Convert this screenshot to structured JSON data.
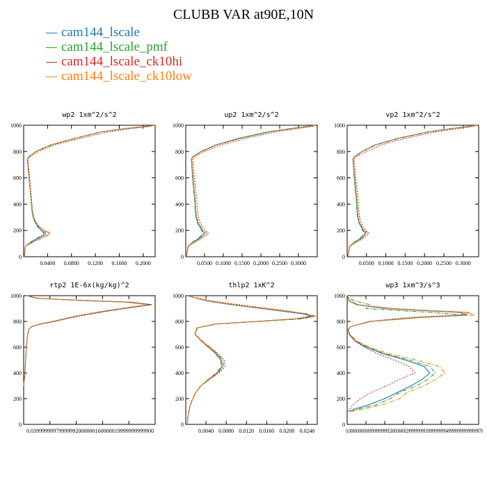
{
  "title": "CLUBB VAR at90E,10N",
  "legend": [
    {
      "label": "cam144_lscale",
      "color": "#1f77b4",
      "dash": "solid"
    },
    {
      "label": "cam144_lscale_pmf",
      "color": "#2ca02c",
      "dash": "dashdot"
    },
    {
      "label": "cam144_lscale_ck10hi",
      "color": "#d62728",
      "dash": "dotted"
    },
    {
      "label": "cam144_lscale_ck10low",
      "color": "#ff7f0e",
      "dash": "dashdot"
    }
  ],
  "chart_data": [
    {
      "type": "line",
      "title": "wp2   1xm^2/s^2",
      "xlim": [
        0,
        0.22
      ],
      "ylim": [
        1000,
        0
      ],
      "yticks": [
        "0",
        "200",
        "400",
        "600",
        "800",
        "1000"
      ],
      "ytick_values": [
        0,
        200,
        400,
        600,
        800,
        1000
      ],
      "xticks": [
        "0.0400",
        "0.0800",
        "0.1200",
        "0.1600",
        "0.2000"
      ],
      "xtick_values": [
        0.04,
        0.08,
        0.12,
        0.16,
        0.2
      ],
      "y": [
        0,
        80,
        110,
        140,
        170,
        180,
        200,
        230,
        260,
        300,
        350,
        400,
        450,
        500,
        600,
        700,
        740,
        760,
        800,
        850,
        900,
        950,
        975,
        990,
        1000
      ],
      "series": [
        {
          "values": [
            0.001,
            0.003,
            0.012,
            0.024,
            0.036,
            0.037,
            0.03,
            0.024,
            0.02,
            0.016,
            0.014,
            0.013,
            0.012,
            0.011,
            0.009,
            0.007,
            0.006,
            0.008,
            0.02,
            0.045,
            0.085,
            0.13,
            0.17,
            0.2,
            0.22
          ]
        },
        {
          "values": [
            0.001,
            0.003,
            0.011,
            0.022,
            0.033,
            0.034,
            0.028,
            0.023,
            0.019,
            0.016,
            0.014,
            0.013,
            0.012,
            0.011,
            0.009,
            0.007,
            0.006,
            0.008,
            0.021,
            0.047,
            0.087,
            0.132,
            0.172,
            0.205,
            0.22
          ]
        },
        {
          "values": [
            0.001,
            0.003,
            0.014,
            0.028,
            0.041,
            0.043,
            0.034,
            0.026,
            0.021,
            0.017,
            0.015,
            0.014,
            0.013,
            0.012,
            0.01,
            0.008,
            0.007,
            0.01,
            0.025,
            0.052,
            0.095,
            0.142,
            0.182,
            0.21,
            0.22
          ]
        },
        {
          "values": [
            0.001,
            0.003,
            0.016,
            0.03,
            0.044,
            0.045,
            0.035,
            0.026,
            0.021,
            0.017,
            0.015,
            0.013,
            0.012,
            0.011,
            0.009,
            0.007,
            0.006,
            0.008,
            0.02,
            0.045,
            0.085,
            0.13,
            0.17,
            0.2,
            0.22
          ]
        }
      ]
    },
    {
      "type": "line",
      "title": "up2   1xm^2/s^2",
      "xlim": [
        0,
        0.35
      ],
      "ylim": [
        1000,
        0
      ],
      "yticks": [
        "0",
        "200",
        "400",
        "600",
        "800",
        "1000"
      ],
      "ytick_values": [
        0,
        200,
        400,
        600,
        800,
        1000
      ],
      "xticks": [
        "0.0500",
        "0.1000",
        "0.1500",
        "0.2000",
        "0.2500",
        "0.3000"
      ],
      "xtick_values": [
        0.05,
        0.1,
        0.15,
        0.2,
        0.25,
        0.3
      ],
      "y": [
        0,
        80,
        110,
        140,
        170,
        180,
        200,
        230,
        260,
        300,
        350,
        400,
        450,
        500,
        600,
        700,
        740,
        760,
        800,
        850,
        900,
        950,
        975,
        990,
        1000
      ],
      "series": [
        {
          "values": [
            0.002,
            0.006,
            0.02,
            0.036,
            0.048,
            0.05,
            0.044,
            0.038,
            0.032,
            0.028,
            0.026,
            0.025,
            0.024,
            0.022,
            0.019,
            0.016,
            0.015,
            0.018,
            0.04,
            0.08,
            0.14,
            0.22,
            0.28,
            0.32,
            0.345
          ]
        },
        {
          "values": [
            0.002,
            0.006,
            0.018,
            0.033,
            0.045,
            0.047,
            0.042,
            0.036,
            0.031,
            0.027,
            0.025,
            0.024,
            0.023,
            0.021,
            0.018,
            0.016,
            0.015,
            0.019,
            0.042,
            0.083,
            0.145,
            0.225,
            0.285,
            0.325,
            0.345
          ]
        },
        {
          "values": [
            0.002,
            0.007,
            0.024,
            0.042,
            0.058,
            0.06,
            0.052,
            0.044,
            0.038,
            0.034,
            0.031,
            0.03,
            0.029,
            0.027,
            0.023,
            0.02,
            0.019,
            0.024,
            0.05,
            0.095,
            0.16,
            0.24,
            0.3,
            0.335,
            0.345
          ]
        },
        {
          "values": [
            0.002,
            0.006,
            0.022,
            0.04,
            0.054,
            0.055,
            0.047,
            0.04,
            0.034,
            0.03,
            0.027,
            0.026,
            0.025,
            0.023,
            0.02,
            0.017,
            0.016,
            0.019,
            0.042,
            0.083,
            0.145,
            0.225,
            0.285,
            0.325,
            0.345
          ]
        }
      ]
    },
    {
      "type": "line",
      "title": "vp2   1xm^2/s^2",
      "xlim": [
        0,
        0.34
      ],
      "ylim": [
        1000,
        0
      ],
      "yticks": [
        "0",
        "200",
        "400",
        "600",
        "800",
        "1000"
      ],
      "ytick_values": [
        0,
        200,
        400,
        600,
        800,
        1000
      ],
      "xticks": [
        "0.0500",
        "0.1000",
        "0.1500",
        "0.2000",
        "0.2500",
        "0.3000"
      ],
      "xtick_values": [
        0.05,
        0.1,
        0.15,
        0.2,
        0.25,
        0.3
      ],
      "y": [
        0,
        80,
        110,
        140,
        170,
        180,
        200,
        230,
        260,
        300,
        350,
        400,
        450,
        500,
        600,
        700,
        740,
        760,
        800,
        850,
        900,
        950,
        975,
        990,
        1000
      ],
      "series": [
        {
          "values": [
            0.002,
            0.006,
            0.02,
            0.036,
            0.046,
            0.048,
            0.042,
            0.036,
            0.031,
            0.028,
            0.026,
            0.025,
            0.024,
            0.022,
            0.019,
            0.016,
            0.015,
            0.018,
            0.038,
            0.072,
            0.13,
            0.21,
            0.27,
            0.31,
            0.335
          ]
        },
        {
          "values": [
            0.002,
            0.006,
            0.018,
            0.033,
            0.043,
            0.045,
            0.04,
            0.035,
            0.03,
            0.027,
            0.025,
            0.024,
            0.023,
            0.021,
            0.018,
            0.016,
            0.015,
            0.019,
            0.04,
            0.075,
            0.135,
            0.215,
            0.275,
            0.315,
            0.335
          ]
        },
        {
          "values": [
            0.002,
            0.007,
            0.024,
            0.042,
            0.054,
            0.056,
            0.048,
            0.041,
            0.036,
            0.032,
            0.03,
            0.029,
            0.028,
            0.026,
            0.022,
            0.019,
            0.018,
            0.023,
            0.05,
            0.088,
            0.15,
            0.23,
            0.29,
            0.325,
            0.335
          ]
        },
        {
          "values": [
            0.002,
            0.006,
            0.022,
            0.04,
            0.05,
            0.052,
            0.045,
            0.038,
            0.033,
            0.029,
            0.027,
            0.026,
            0.025,
            0.023,
            0.02,
            0.017,
            0.016,
            0.019,
            0.039,
            0.073,
            0.132,
            0.212,
            0.272,
            0.312,
            0.335
          ]
        }
      ]
    },
    {
      "type": "line",
      "title": "rtp2   1E-6x(kg/kg)^2",
      "xlim": [
        0,
        0.2
      ],
      "ylim": [
        1000,
        0
      ],
      "yticks": [
        "0",
        "200",
        "400",
        "600",
        "800",
        "1000"
      ],
      "ytick_values": [
        0,
        200,
        400,
        600,
        800,
        1000
      ],
      "xticks": [
        "0.0399999",
        "0.0799999",
        "0.1200000",
        "0.1600000",
        "0.1999999"
      ],
      "xtick_values": [
        0.04,
        0.08,
        0.12,
        0.16,
        0.2
      ],
      "xtick_text": "0.0399999997​9999992000000​1600000​19999999999900",
      "y": [
        300,
        400,
        500,
        600,
        700,
        740,
        760,
        780,
        800,
        840,
        880,
        910,
        930,
        950,
        965,
        980,
        1000
      ],
      "series": [
        {
          "values": [
            0.0,
            0.002,
            0.003,
            0.004,
            0.006,
            0.008,
            0.012,
            0.025,
            0.045,
            0.08,
            0.125,
            0.165,
            0.195,
            0.16,
            0.08,
            0.02,
            0.005
          ]
        },
        {
          "values": [
            0.0,
            0.002,
            0.003,
            0.004,
            0.006,
            0.008,
            0.012,
            0.025,
            0.044,
            0.078,
            0.122,
            0.162,
            0.19,
            0.155,
            0.075,
            0.02,
            0.005
          ]
        },
        {
          "values": [
            0.0,
            0.002,
            0.003,
            0.004,
            0.006,
            0.008,
            0.013,
            0.027,
            0.048,
            0.083,
            0.128,
            0.168,
            0.193,
            0.165,
            0.085,
            0.022,
            0.005
          ]
        },
        {
          "values": [
            0.0,
            0.002,
            0.003,
            0.004,
            0.006,
            0.008,
            0.012,
            0.024,
            0.043,
            0.077,
            0.12,
            0.16,
            0.188,
            0.155,
            0.075,
            0.019,
            0.005
          ]
        }
      ]
    },
    {
      "type": "line",
      "title": "thlp2   1xK^2",
      "xlim": [
        0,
        0.026
      ],
      "ylim": [
        1000,
        0
      ],
      "yticks": [
        "0",
        "200",
        "400",
        "600",
        "800",
        "1000"
      ],
      "ytick_values": [
        0,
        200,
        400,
        600,
        800,
        1000
      ],
      "xticks": [
        "0.0040",
        "0.0080",
        "0.0120",
        "0.0160",
        "0.0200",
        "0.0240"
      ],
      "xtick_values": [
        0.004,
        0.008,
        0.012,
        0.016,
        0.02,
        0.024
      ],
      "y": [
        0,
        50,
        100,
        150,
        200,
        250,
        300,
        350,
        400,
        450,
        500,
        550,
        600,
        650,
        700,
        750,
        780,
        800,
        820,
        840,
        860,
        880,
        900,
        930,
        960,
        990,
        1000
      ],
      "series": [
        {
          "values": [
            0.0003,
            0.0004,
            0.0006,
            0.0009,
            0.0014,
            0.002,
            0.003,
            0.0045,
            0.0062,
            0.0072,
            0.007,
            0.006,
            0.0045,
            0.003,
            0.0018,
            0.0022,
            0.006,
            0.014,
            0.022,
            0.025,
            0.023,
            0.019,
            0.015,
            0.009,
            0.004,
            0.0012,
            0.0005
          ]
        },
        {
          "values": [
            0.0003,
            0.0004,
            0.0006,
            0.0009,
            0.0014,
            0.002,
            0.003,
            0.0046,
            0.0064,
            0.0075,
            0.0073,
            0.0062,
            0.0047,
            0.0031,
            0.0018,
            0.0022,
            0.006,
            0.0145,
            0.023,
            0.0255,
            0.0235,
            0.0195,
            0.0155,
            0.0095,
            0.0042,
            0.0012,
            0.0005
          ]
        },
        {
          "values": [
            0.0003,
            0.0004,
            0.0006,
            0.0009,
            0.0014,
            0.002,
            0.003,
            0.0047,
            0.0066,
            0.0078,
            0.0076,
            0.0064,
            0.0048,
            0.0032,
            0.0019,
            0.0023,
            0.0062,
            0.014,
            0.0215,
            0.0245,
            0.0235,
            0.0205,
            0.0165,
            0.0105,
            0.005,
            0.0014,
            0.0005
          ]
        },
        {
          "values": [
            0.0003,
            0.0004,
            0.0006,
            0.0009,
            0.0014,
            0.002,
            0.003,
            0.0044,
            0.006,
            0.007,
            0.0068,
            0.0058,
            0.0044,
            0.003,
            0.0018,
            0.0023,
            0.0062,
            0.0145,
            0.0225,
            0.0258,
            0.024,
            0.0198,
            0.0155,
            0.0095,
            0.0042,
            0.0012,
            0.0005
          ]
        }
      ]
    },
    {
      "type": "line",
      "title": "wp3   1xm^3/s^3",
      "xlim": [
        0,
        7e-05
      ],
      "ylim": [
        1000,
        0
      ],
      "yticks": [
        "0",
        "200",
        "400",
        "600",
        "800",
        "1000"
      ],
      "ytick_values": [
        0,
        200,
        400,
        600,
        800,
        1000
      ],
      "xticks": [
        "0.0000000",
        "0.0000099",
        "0.0000199",
        "0.0000299",
        "0.0000399",
        "0.0000499",
        "0.0000599",
        "0.0000699"
      ],
      "xtick_values": [
        0,
        1e-05,
        2e-05,
        3e-05,
        4e-05,
        5e-05,
        6e-05,
        7e-05
      ],
      "xtick_text": "0.0000000​000099999​9999920000000​0299999​9999399999999​9949999​99999999999970",
      "y": [
        100,
        120,
        150,
        200,
        250,
        300,
        350,
        400,
        450,
        500,
        550,
        600,
        650,
        700,
        740,
        760,
        800,
        830,
        850,
        870,
        900,
        930,
        960,
        980,
        1000
      ],
      "series": [
        {
          "values": [
            1e-06,
            4e-06,
            1.1e-05,
            2e-05,
            2.7e-05,
            3.4e-05,
            4e-05,
            4.4e-05,
            4.1e-05,
            3.1e-05,
            1.9e-05,
            1e-05,
            4e-06,
            1e-06,
            5e-07,
            2e-06,
            1.2e-05,
            3.8e-05,
            6.4e-05,
            6e-05,
            2e-05,
            5e-06,
            1e-06,
            5e-07,
            2e-07
          ]
        },
        {
          "values": [
            2e-06,
            6e-06,
            1.5e-05,
            2.3e-05,
            2.8e-05,
            3.7e-05,
            4.3e-05,
            4.7e-05,
            4.4e-05,
            3.3e-05,
            2e-05,
            1.1e-05,
            4.5e-06,
            1.2e-06,
            6e-07,
            2e-06,
            1.2e-05,
            3.8e-05,
            6.2e-05,
            4.5e-05,
            1e-05,
            1.2e-05,
            4e-06,
            1e-06,
            3e-07
          ]
        },
        {
          "values": [
            5e-07,
            1.5e-06,
            3e-06,
            7e-06,
            1.3e-05,
            2.1e-05,
            2.8e-05,
            3.6e-05,
            3.3e-05,
            2.5e-05,
            1.6e-05,
            9e-06,
            4e-06,
            1.2e-06,
            8e-07,
            2e-06,
            1.2e-05,
            3.2e-05,
            6e-05,
            6.5e-05,
            2.5e-05,
            6e-06,
            1.5e-06,
            5e-07,
            2e-07
          ]
        },
        {
          "values": [
            2e-06,
            9e-06,
            1.8e-05,
            2.8e-05,
            3.2e-05,
            4.1e-05,
            4.7e-05,
            5.2e-05,
            4.9e-05,
            3.7e-05,
            2.2e-05,
            1.2e-05,
            5e-06,
            1.5e-06,
            5e-07,
            2e-06,
            1.3e-05,
            4e-05,
            6.8e-05,
            6.4e-05,
            2.2e-05,
            6e-06,
            1e-06,
            5e-07,
            2e-07
          ]
        }
      ]
    }
  ]
}
